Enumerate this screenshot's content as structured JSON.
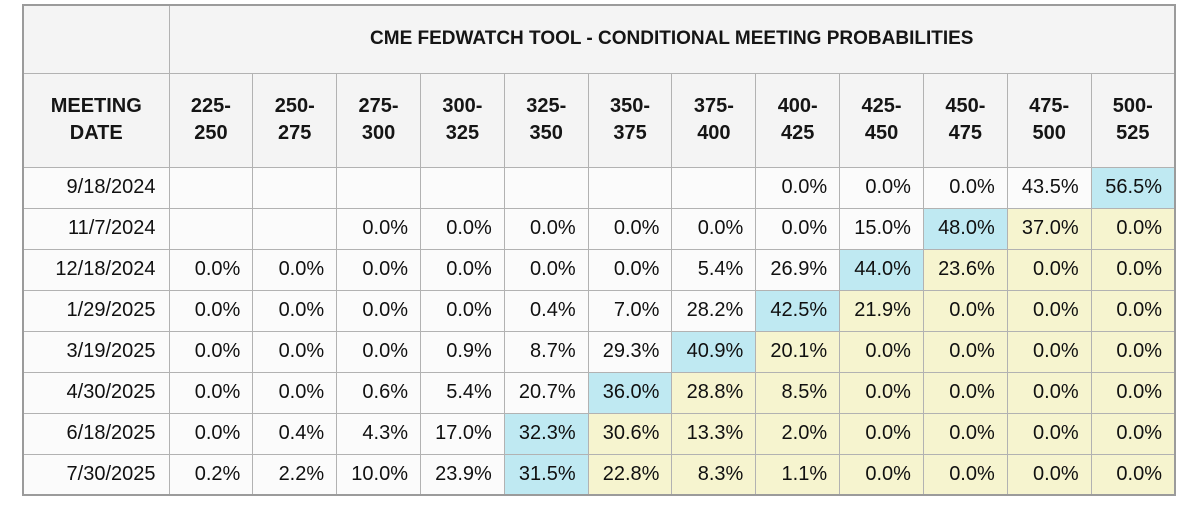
{
  "colors": {
    "highlight_max": "#bfe9f2",
    "highlight_right_of_max": "#f6f4cf"
  },
  "chart_data": {
    "type": "table",
    "title": "CME FEDWATCH TOOL - CONDITIONAL MEETING PROBABILITIES",
    "row_header_label": "MEETING DATE",
    "columns": [
      "225-250",
      "250-275",
      "275-300",
      "300-325",
      "325-350",
      "350-375",
      "375-400",
      "400-425",
      "425-450",
      "450-475",
      "475-500",
      "500-525"
    ],
    "rows": [
      {
        "date": "9/18/2024",
        "values": [
          "",
          "",
          "",
          "",
          "",
          "",
          "",
          "0.0%",
          "0.0%",
          "0.0%",
          "43.5%",
          "56.5%"
        ],
        "highlights": [
          "",
          "",
          "",
          "",
          "",
          "",
          "",
          "",
          "",
          "",
          "",
          "cyan"
        ]
      },
      {
        "date": "11/7/2024",
        "values": [
          "",
          "",
          "0.0%",
          "0.0%",
          "0.0%",
          "0.0%",
          "0.0%",
          "0.0%",
          "15.0%",
          "48.0%",
          "37.0%",
          "0.0%"
        ],
        "highlights": [
          "",
          "",
          "",
          "",
          "",
          "",
          "",
          "",
          "",
          "cyan",
          "yellow",
          "yellow"
        ]
      },
      {
        "date": "12/18/2024",
        "values": [
          "0.0%",
          "0.0%",
          "0.0%",
          "0.0%",
          "0.0%",
          "0.0%",
          "5.4%",
          "26.9%",
          "44.0%",
          "23.6%",
          "0.0%",
          "0.0%"
        ],
        "highlights": [
          "",
          "",
          "",
          "",
          "",
          "",
          "",
          "",
          "cyan",
          "yellow",
          "yellow",
          "yellow"
        ]
      },
      {
        "date": "1/29/2025",
        "values": [
          "0.0%",
          "0.0%",
          "0.0%",
          "0.0%",
          "0.4%",
          "7.0%",
          "28.2%",
          "42.5%",
          "21.9%",
          "0.0%",
          "0.0%",
          "0.0%"
        ],
        "highlights": [
          "",
          "",
          "",
          "",
          "",
          "",
          "",
          "cyan",
          "yellow",
          "yellow",
          "yellow",
          "yellow"
        ]
      },
      {
        "date": "3/19/2025",
        "values": [
          "0.0%",
          "0.0%",
          "0.0%",
          "0.9%",
          "8.7%",
          "29.3%",
          "40.9%",
          "20.1%",
          "0.0%",
          "0.0%",
          "0.0%",
          "0.0%"
        ],
        "highlights": [
          "",
          "",
          "",
          "",
          "",
          "",
          "cyan",
          "yellow",
          "yellow",
          "yellow",
          "yellow",
          "yellow"
        ]
      },
      {
        "date": "4/30/2025",
        "values": [
          "0.0%",
          "0.0%",
          "0.6%",
          "5.4%",
          "20.7%",
          "36.0%",
          "28.8%",
          "8.5%",
          "0.0%",
          "0.0%",
          "0.0%",
          "0.0%"
        ],
        "highlights": [
          "",
          "",
          "",
          "",
          "",
          "cyan",
          "yellow",
          "yellow",
          "yellow",
          "yellow",
          "yellow",
          "yellow"
        ]
      },
      {
        "date": "6/18/2025",
        "values": [
          "0.0%",
          "0.4%",
          "4.3%",
          "17.0%",
          "32.3%",
          "30.6%",
          "13.3%",
          "2.0%",
          "0.0%",
          "0.0%",
          "0.0%",
          "0.0%"
        ],
        "highlights": [
          "",
          "",
          "",
          "",
          "cyan",
          "yellow",
          "yellow",
          "yellow",
          "yellow",
          "yellow",
          "yellow",
          "yellow"
        ]
      },
      {
        "date": "7/30/2025",
        "values": [
          "0.2%",
          "2.2%",
          "10.0%",
          "23.9%",
          "31.5%",
          "22.8%",
          "8.3%",
          "1.1%",
          "0.0%",
          "0.0%",
          "0.0%",
          "0.0%"
        ],
        "highlights": [
          "",
          "",
          "",
          "",
          "cyan",
          "yellow",
          "yellow",
          "yellow",
          "yellow",
          "yellow",
          "yellow",
          "yellow"
        ]
      }
    ]
  }
}
